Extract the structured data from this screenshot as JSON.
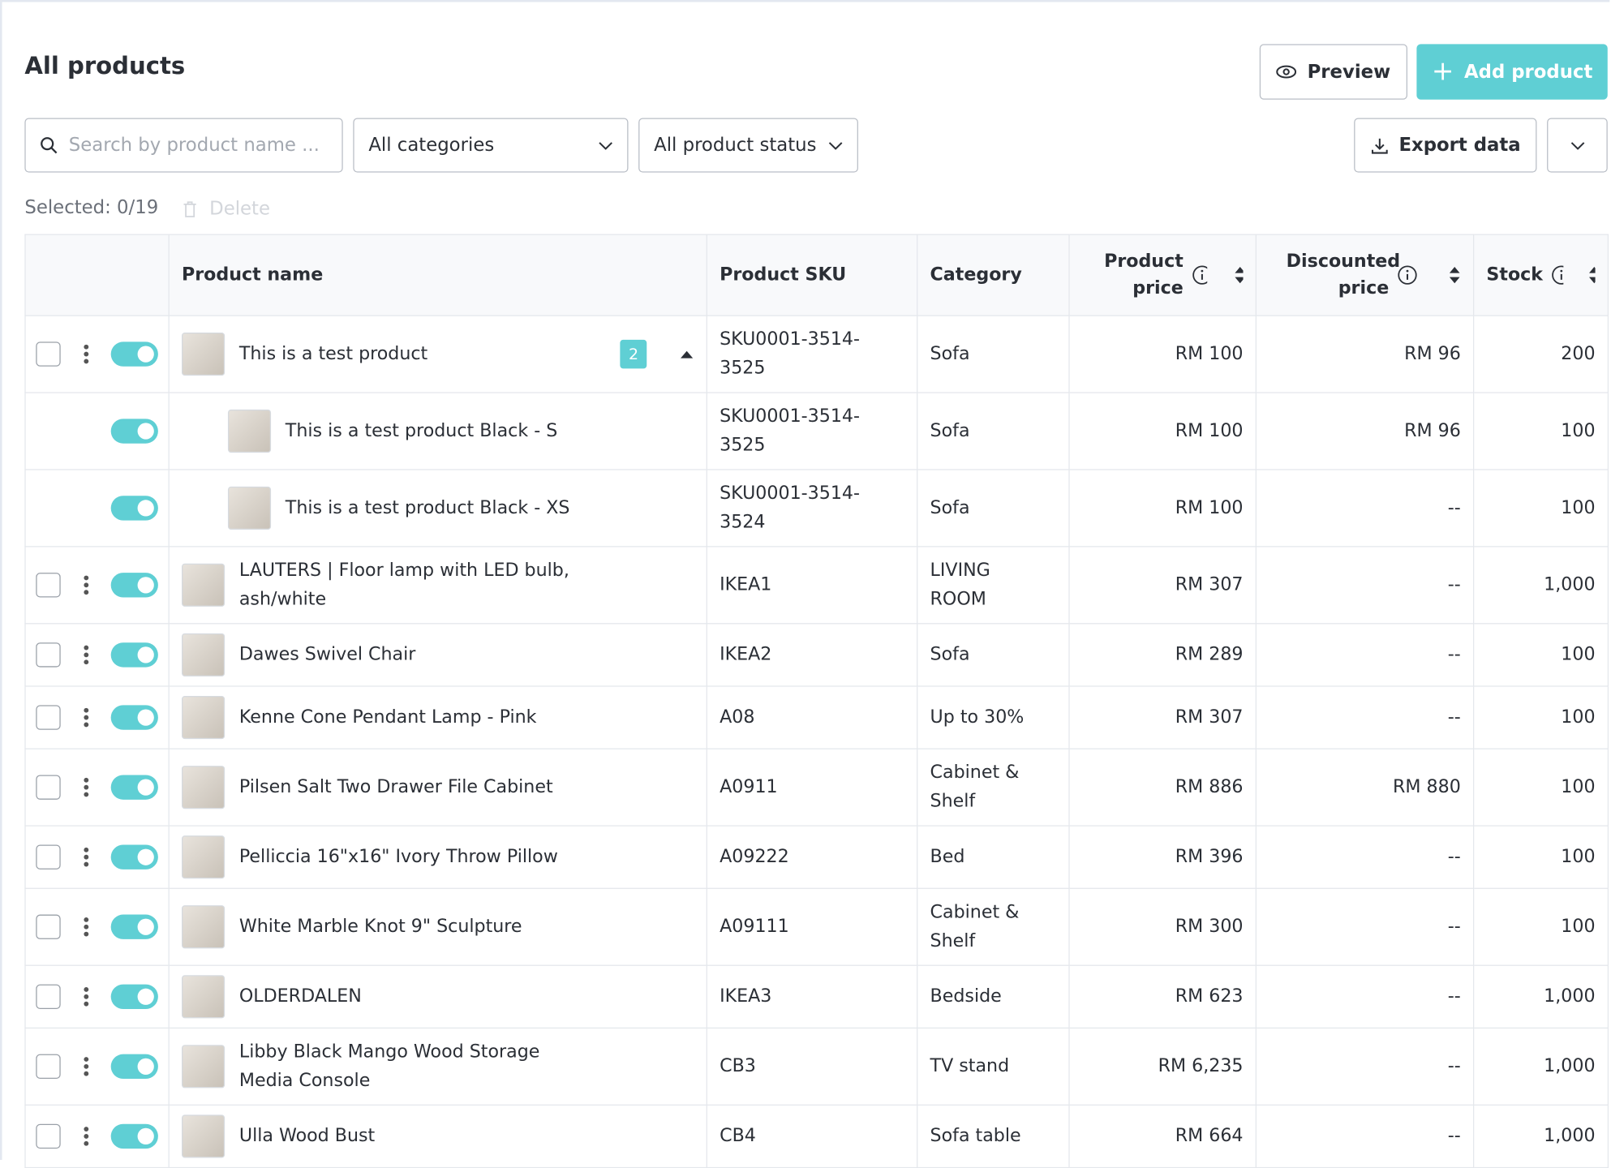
{
  "header": {
    "title": "All products",
    "preview": "Preview",
    "add_product": "Add product"
  },
  "filters": {
    "search_placeholder": "Search by product name ...",
    "category": "All categories",
    "status": "All product status",
    "export": "Export data"
  },
  "selection": {
    "selected": "Selected: 0/19",
    "delete": "Delete"
  },
  "table": {
    "columns": [
      "Product name",
      "Product SKU",
      "Category",
      "Product price",
      "Discounted price",
      "Stock"
    ],
    "rows": [
      {
        "name": "This is a test product",
        "sku": "SKU0001-3514-3525",
        "category": "Sofa",
        "price": "RM 100",
        "discounted": "RM 96",
        "stock": "200",
        "badge": "2"
      },
      {
        "name": "This is a test product Black - S",
        "sku": "SKU0001-3514-3525",
        "category": "Sofa",
        "price": "RM 100",
        "discounted": "RM 96",
        "stock": "100",
        "variant": true
      },
      {
        "name": "This is a test product Black - XS",
        "sku": "SKU0001-3514-3524",
        "category": "Sofa",
        "price": "RM 100",
        "discounted": "--",
        "stock": "100",
        "variant": true
      },
      {
        "name": "LAUTERS | Floor lamp with LED bulb, ash/white",
        "sku": "IKEA1",
        "category": "LIVING ROOM",
        "price": "RM 307",
        "discounted": "--",
        "stock": "1,000"
      },
      {
        "name": "Dawes Swivel Chair",
        "sku": "IKEA2",
        "category": "Sofa",
        "price": "RM 289",
        "discounted": "--",
        "stock": "100"
      },
      {
        "name": "Kenne Cone Pendant Lamp - Pink",
        "sku": "A08",
        "category": "Up to 30%",
        "price": "RM 307",
        "discounted": "--",
        "stock": "100"
      },
      {
        "name": "Pilsen Salt Two Drawer File Cabinet",
        "sku": "A0911",
        "category": "Cabinet & Shelf",
        "price": "RM 886",
        "discounted": "RM 880",
        "stock": "100"
      },
      {
        "name": "Pelliccia 16\"x16\" Ivory Throw Pillow",
        "sku": "A09222",
        "category": "Bed",
        "price": "RM 396",
        "discounted": "--",
        "stock": "100"
      },
      {
        "name": "White Marble Knot 9\" Sculpture",
        "sku": "A09111",
        "category": "Cabinet & Shelf",
        "price": "RM 300",
        "discounted": "--",
        "stock": "100"
      },
      {
        "name": "OLDERDALEN",
        "sku": "IKEA3",
        "category": "Bedside",
        "price": "RM 623",
        "discounted": "--",
        "stock": "1,000"
      },
      {
        "name": "Libby Black Mango Wood Storage Media Console",
        "sku": "CB3",
        "category": "TV stand",
        "price": "RM 6,235",
        "discounted": "--",
        "stock": "1,000"
      },
      {
        "name": "Ulla Wood Bust",
        "sku": "CB4",
        "category": "Sofa table",
        "price": "RM 664",
        "discounted": "--",
        "stock": "1,000"
      }
    ]
  }
}
